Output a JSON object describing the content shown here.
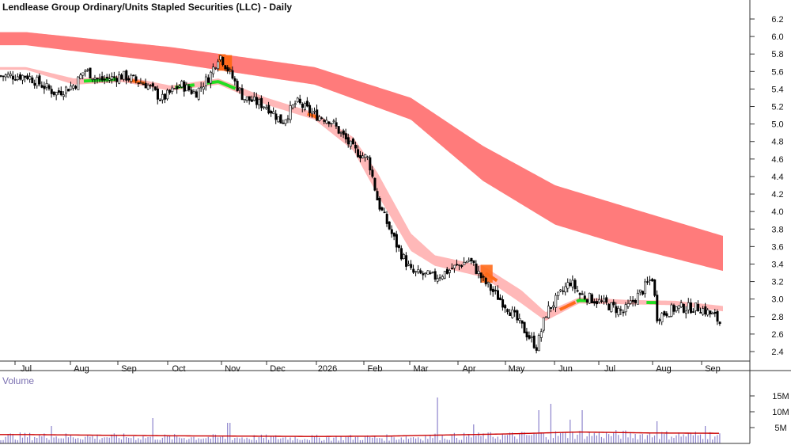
{
  "chart_data": [
    {
      "type": "candlestick",
      "title": "Lendlease Group Ordinary/Units Stapled Securities (LLC) - Daily",
      "xlabel": "",
      "ylabel": "",
      "ylim": [
        2.2,
        6.3
      ],
      "yticks": [
        "6.2",
        "6.0",
        "5.8",
        "5.6",
        "5.4",
        "5.2",
        "5.0",
        "4.8",
        "4.6",
        "4.4",
        "4.2",
        "4.0",
        "3.8",
        "3.6",
        "3.4",
        "3.2",
        "3.0",
        "2.8",
        "2.6",
        "2.4"
      ],
      "xticks": [
        "Jul",
        "Aug",
        "Sep",
        "Oct",
        "Nov",
        "Dec",
        "2026",
        "Feb",
        "Mar",
        "Apr",
        "May",
        "Jun",
        "Jul",
        "Aug",
        "Sep"
      ],
      "price_path": [
        {
          "m": 0.0,
          "p": 5.55
        },
        {
          "m": 0.6,
          "p": 5.35
        },
        {
          "m": 1.0,
          "p": 5.45
        },
        {
          "m": 1.2,
          "p": 5.62
        },
        {
          "m": 1.5,
          "p": 5.5
        },
        {
          "m": 2.0,
          "p": 5.55
        },
        {
          "m": 2.5,
          "p": 5.45
        },
        {
          "m": 2.8,
          "p": 5.28
        },
        {
          "m": 3.2,
          "p": 5.45
        },
        {
          "m": 3.5,
          "p": 5.35
        },
        {
          "m": 3.8,
          "p": 5.55
        },
        {
          "m": 4.0,
          "p": 5.8
        },
        {
          "m": 4.3,
          "p": 5.5
        },
        {
          "m": 4.5,
          "p": 5.3
        },
        {
          "m": 5.0,
          "p": 5.2
        },
        {
          "m": 5.3,
          "p": 5.02
        },
        {
          "m": 5.6,
          "p": 5.25
        },
        {
          "m": 6.0,
          "p": 5.1
        },
        {
          "m": 6.3,
          "p": 5.05
        },
        {
          "m": 6.8,
          "p": 4.7
        },
        {
          "m": 7.1,
          "p": 4.6
        },
        {
          "m": 7.3,
          "p": 4.1
        },
        {
          "m": 7.7,
          "p": 3.6
        },
        {
          "m": 8.0,
          "p": 3.3
        },
        {
          "m": 8.5,
          "p": 3.25
        },
        {
          "m": 9.2,
          "p": 3.45
        },
        {
          "m": 9.5,
          "p": 3.2
        },
        {
          "m": 10.0,
          "p": 2.9
        },
        {
          "m": 10.4,
          "p": 2.6
        },
        {
          "m": 10.6,
          "p": 2.45
        },
        {
          "m": 10.8,
          "p": 2.85
        },
        {
          "m": 11.3,
          "p": 3.2
        },
        {
          "m": 11.5,
          "p": 3.05
        },
        {
          "m": 12.0,
          "p": 2.95
        },
        {
          "m": 12.4,
          "p": 2.85
        },
        {
          "m": 12.8,
          "p": 3.1
        },
        {
          "m": 13.0,
          "p": 3.25
        },
        {
          "m": 13.1,
          "p": 2.8
        },
        {
          "m": 13.5,
          "p": 2.9
        },
        {
          "m": 14.0,
          "p": 2.9
        },
        {
          "m": 14.3,
          "p": 2.8
        },
        {
          "m": 14.45,
          "p": 2.7
        }
      ],
      "long_band": [
        {
          "m": 0.0,
          "upper": 6.05,
          "lower": 5.9
        },
        {
          "m": 3.0,
          "upper": 5.88,
          "lower": 5.7
        },
        {
          "m": 6.0,
          "upper": 5.65,
          "lower": 5.45
        },
        {
          "m": 8.0,
          "upper": 5.3,
          "lower": 5.05
        },
        {
          "m": 9.5,
          "upper": 4.75,
          "lower": 4.35
        },
        {
          "m": 11.0,
          "upper": 4.3,
          "lower": 3.85
        },
        {
          "m": 12.5,
          "upper": 4.05,
          "lower": 3.6
        },
        {
          "m": 14.5,
          "upper": 3.72,
          "lower": 3.32
        }
      ],
      "short_band": [
        {
          "m": 0.0,
          "upper": 5.65,
          "lower": 5.62
        },
        {
          "m": 1.0,
          "upper": 5.52,
          "lower": 5.45
        },
        {
          "m": 2.0,
          "upper": 5.55,
          "lower": 5.48
        },
        {
          "m": 3.0,
          "upper": 5.44,
          "lower": 5.38
        },
        {
          "m": 4.0,
          "upper": 5.52,
          "lower": 5.45
        },
        {
          "m": 5.0,
          "upper": 5.3,
          "lower": 5.22
        },
        {
          "m": 6.0,
          "upper": 5.13,
          "lower": 5.05
        },
        {
          "m": 6.8,
          "upper": 4.85,
          "lower": 4.7
        },
        {
          "m": 7.3,
          "upper": 4.45,
          "lower": 4.2
        },
        {
          "m": 8.0,
          "upper": 3.75,
          "lower": 3.55
        },
        {
          "m": 8.5,
          "upper": 3.5,
          "lower": 3.38
        },
        {
          "m": 9.5,
          "upper": 3.38,
          "lower": 3.25
        },
        {
          "m": 10.3,
          "upper": 3.1,
          "lower": 2.95
        },
        {
          "m": 10.8,
          "upper": 2.85,
          "lower": 2.75
        },
        {
          "m": 11.5,
          "upper": 3.02,
          "lower": 2.95
        },
        {
          "m": 12.5,
          "upper": 2.99,
          "lower": 2.94
        },
        {
          "m": 13.5,
          "upper": 2.98,
          "lower": 2.93
        },
        {
          "m": 14.5,
          "upper": 2.92,
          "lower": 2.86
        }
      ],
      "colors": {
        "long_band": "#ff7b7b",
        "short_band": "#ffb8b8",
        "up_cross": "#22dd22",
        "down_cross": "#ff6a1a",
        "candle": "#000000",
        "axis": "#333333",
        "volume_bar": "#8c83cc",
        "volume_avg": "#cc0000"
      },
      "grid": false
    },
    {
      "type": "bar",
      "title": "Volume",
      "yticks": [
        "15M",
        "10M",
        "5M"
      ],
      "ylim": [
        0,
        16
      ],
      "volume_avg": [
        {
          "m": 0.0,
          "v": 2.8
        },
        {
          "m": 3.0,
          "v": 2.4
        },
        {
          "m": 6.0,
          "v": 2.2
        },
        {
          "m": 7.5,
          "v": 2.3
        },
        {
          "m": 8.5,
          "v": 2.6
        },
        {
          "m": 10.0,
          "v": 3.0
        },
        {
          "m": 11.5,
          "v": 3.6
        },
        {
          "m": 13.0,
          "v": 3.3
        },
        {
          "m": 14.5,
          "v": 3.2
        }
      ],
      "spikes": [
        {
          "m": 0.5,
          "v": 5.5
        },
        {
          "m": 2.6,
          "v": 8.0
        },
        {
          "m": 4.2,
          "v": 6.5
        },
        {
          "m": 8.55,
          "v": 14.5
        },
        {
          "m": 9.3,
          "v": 6.0
        },
        {
          "m": 10.65,
          "v": 10.5
        },
        {
          "m": 10.9,
          "v": 12.5
        },
        {
          "m": 11.3,
          "v": 7.5
        },
        {
          "m": 11.55,
          "v": 10.5
        },
        {
          "m": 13.1,
          "v": 7.0
        },
        {
          "m": 14.1,
          "v": 5.5
        }
      ]
    }
  ]
}
